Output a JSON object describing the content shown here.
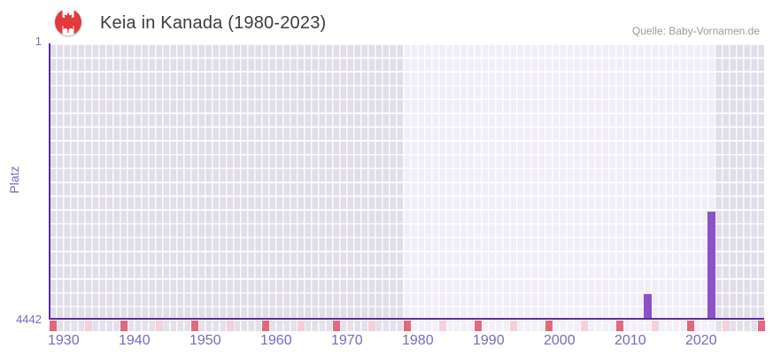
{
  "header": {
    "title": "Keia in Kanada (1980-2023)",
    "source": "Quelle: Baby-Vornamen.de",
    "flag_icon": "canada-flag"
  },
  "y_axis": {
    "title": "Platz",
    "top_label": "1",
    "bottom_label": "4442"
  },
  "chart_data": {
    "type": "bar",
    "title": "Keia in Kanada (1980-2023)",
    "ylabel": "Platz",
    "xlabel": "",
    "y_range": [
      1,
      4442
    ],
    "y_inverted": true,
    "x_range": [
      1930,
      2031
    ],
    "x_tick_labels": [
      "1930",
      "1940",
      "1950",
      "1960",
      "1970",
      "1980",
      "1990",
      "2000",
      "2010",
      "2020"
    ],
    "highlight_year_range": [
      1980,
      2023
    ],
    "points": [
      {
        "year": 2014,
        "rank": 4060
      },
      {
        "year": 2023,
        "rank": 2730
      }
    ],
    "decade_marker_years": [
      1930,
      1940,
      1950,
      1960,
      1970,
      1980,
      1990,
      2000,
      2010,
      2020,
      2030
    ],
    "half_decade_marker_years": [
      1935,
      1945,
      1955,
      1965,
      1975,
      1985,
      1995,
      2005,
      2015,
      2025
    ],
    "legend": false,
    "grid": true
  },
  "colors": {
    "bar": "#8b53c7",
    "axis_line": "#5b2f96",
    "axis_text": "#7d68c0",
    "in_range_cell": "#f1eef9",
    "out_range_cell": "#e1dde9",
    "decade_marker": "#e0697b",
    "half_decade_marker": "#f2d0dc",
    "title_text": "#3d3d3d",
    "source_text": "#9a9a9a",
    "flag_red": "#e03a3a"
  }
}
